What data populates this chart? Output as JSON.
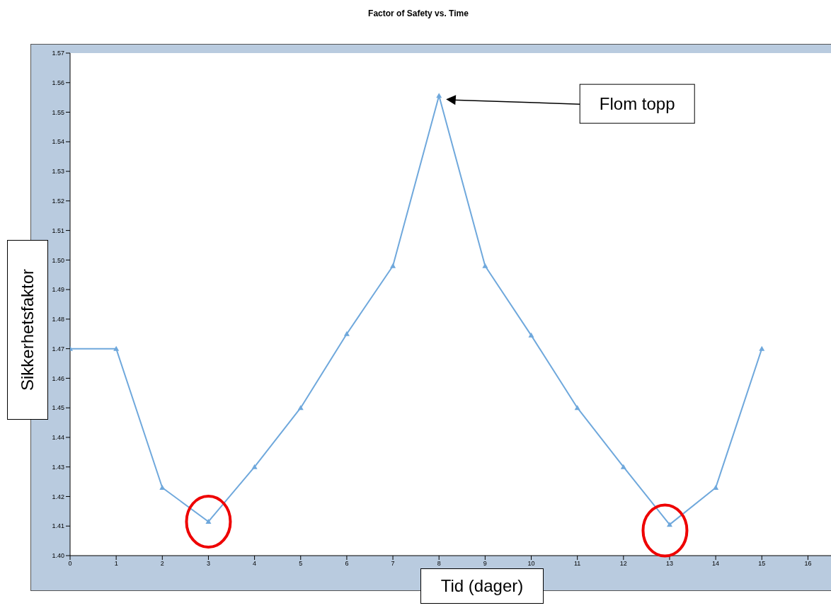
{
  "chart_data": {
    "type": "line",
    "title": "Factor of Safety vs. Time",
    "xlabel": "Tid (dager)",
    "ylabel": "Sikkerhetsfaktor",
    "x": [
      0,
      1,
      2,
      3,
      4,
      5,
      6,
      7,
      8,
      9,
      10,
      11,
      12,
      13,
      14,
      15
    ],
    "series": [
      {
        "color": "#6fa8dc",
        "values": [
          1.47,
          1.47,
          1.423,
          1.4115,
          1.43,
          1.45,
          1.475,
          1.498,
          1.5556,
          1.498,
          1.4745,
          1.45,
          1.43,
          1.4105,
          1.423,
          1.47
        ]
      }
    ],
    "xlim": [
      0,
      16.5
    ],
    "xticks": [
      0,
      1,
      2,
      3,
      4,
      5,
      6,
      7,
      8,
      9,
      10,
      11,
      12,
      13,
      14,
      15,
      16
    ],
    "ylim": [
      1.4,
      1.57
    ],
    "yticks": [
      {
        "value": 1.4,
        "label": "1.40"
      },
      1.41,
      1.42,
      1.43,
      1.44,
      1.45,
      1.46,
      1.47,
      1.48,
      1.49,
      {
        "value": 1.5,
        "label": "1.50"
      },
      1.51,
      1.52,
      1.53,
      1.54,
      1.55,
      1.56,
      1.57
    ],
    "marker": "triangle",
    "line_style": "solid",
    "grid": false,
    "annotations": [
      "Flom topp"
    ]
  }
}
